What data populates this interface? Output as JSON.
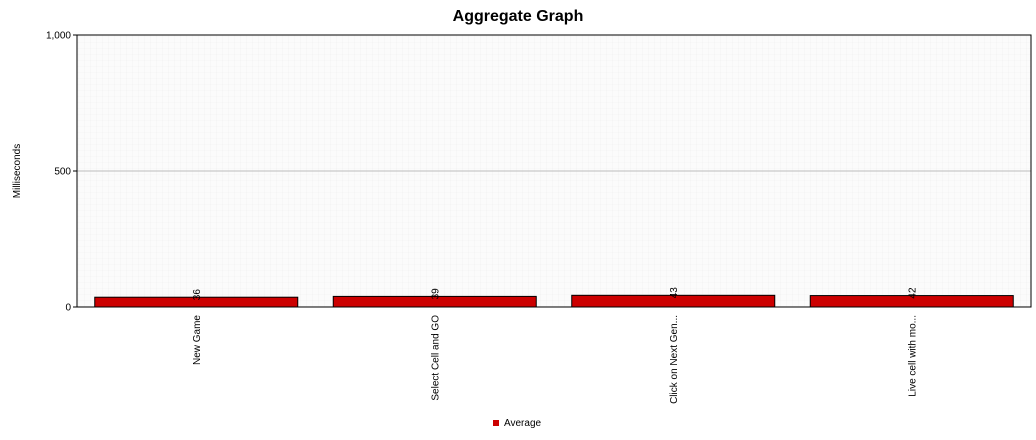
{
  "chart_data": {
    "type": "bar",
    "title": "Aggregate Graph",
    "xlabel": "",
    "ylabel": "Milliseconds",
    "ylim": [
      0,
      1000
    ],
    "yticks": [
      0,
      500,
      1000
    ],
    "ytick_labels": [
      "0",
      "500",
      "1,000"
    ],
    "categories": [
      "New Game",
      "Select Cell and GO",
      "Click on Next Gen...",
      "Live cell with mo..."
    ],
    "series": [
      {
        "name": "Average",
        "color": "#cc0000",
        "values": [
          36,
          39,
          43,
          42
        ],
        "labels": [
          "36",
          "39",
          "43",
          "42"
        ]
      }
    ],
    "grid": true,
    "legend_position": "bottom"
  }
}
